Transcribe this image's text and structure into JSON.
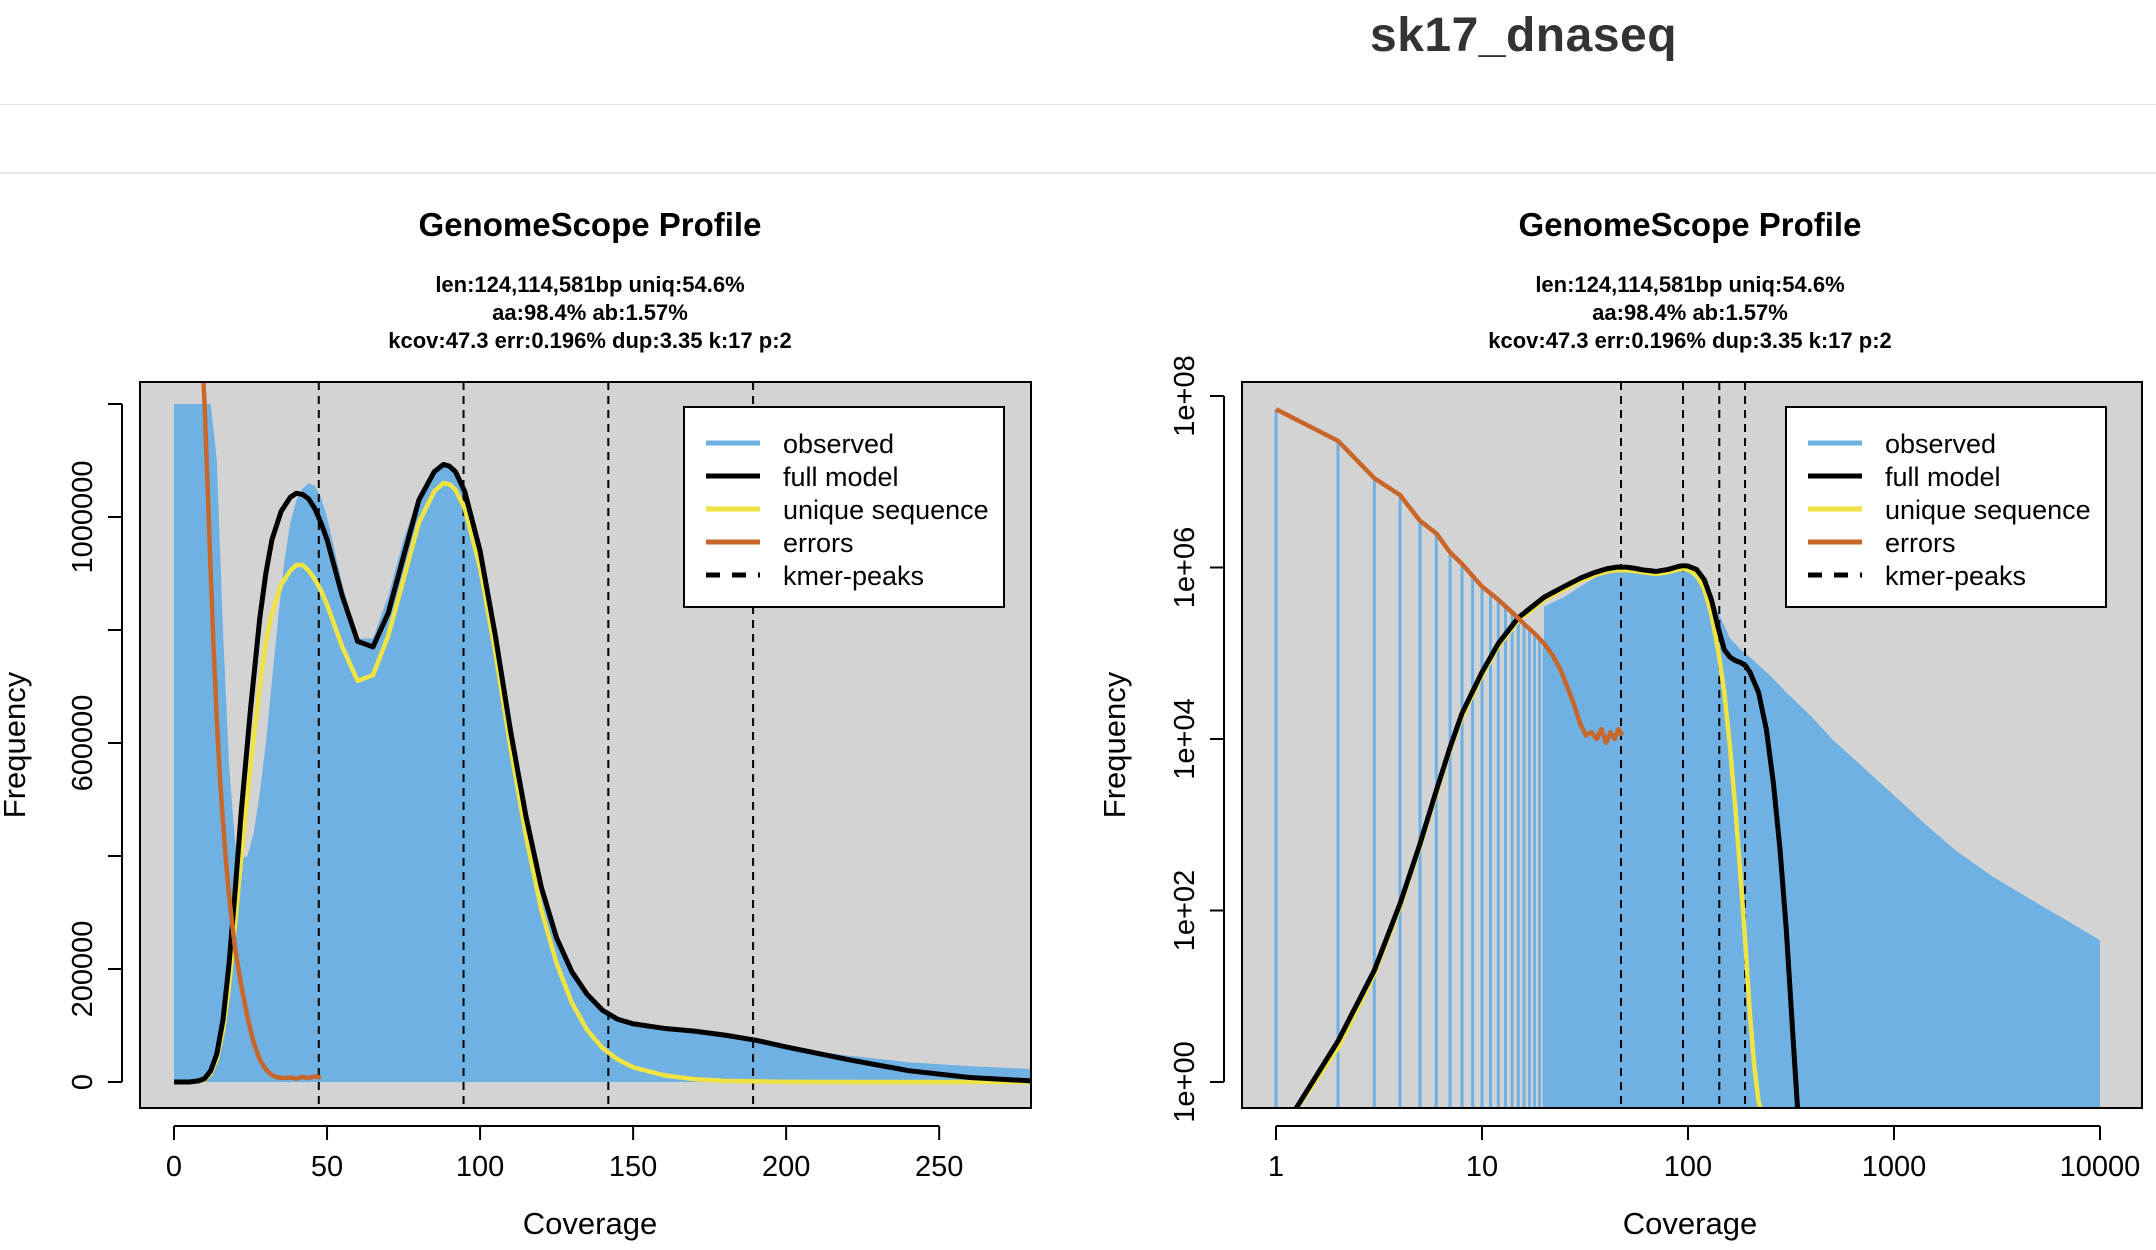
{
  "page": {
    "title": "sk17_dnaseq"
  },
  "colors": {
    "observed": "#6fb1e2",
    "full_model": "#000000",
    "unique_sequence": "#f0e442",
    "errors": "#c9662a",
    "panel_bg": "#d3d3d3"
  },
  "stats": {
    "line1": "len:124,114,581bp uniq:54.6%",
    "line2": "aa:98.4% ab:1.57%",
    "line3": "kcov:47.3 err:0.196%  dup:3.35  k:17 p:2"
  },
  "legend": [
    "observed",
    "full model",
    "unique sequence",
    "errors",
    "kmer-peaks"
  ],
  "chart_data": [
    {
      "type": "area",
      "title": "GenomeScope Profile",
      "xlabel": "Coverage",
      "ylabel": "Frequency",
      "xlim": [
        0,
        280
      ],
      "ylim": [
        0,
        1200000
      ],
      "x_ticks": [
        "0",
        "50",
        "100",
        "150",
        "200",
        "250"
      ],
      "y_ticks": [
        "0",
        "200000",
        "600000",
        "1000000"
      ],
      "kmer_peaks": [
        47.3,
        94.6,
        141.9,
        189.2
      ],
      "legend_position": "top-right",
      "series": [
        {
          "name": "observed",
          "x": [
            0,
            1,
            2,
            5,
            8,
            10,
            12,
            14,
            16,
            18,
            20,
            22,
            24,
            26,
            28,
            30,
            32,
            34,
            36,
            38,
            40,
            42,
            44,
            46,
            48,
            50,
            55,
            60,
            65,
            70,
            75,
            80,
            85,
            88,
            90,
            92,
            95,
            100,
            105,
            110,
            115,
            120,
            125,
            130,
            135,
            140,
            145,
            150,
            160,
            170,
            180,
            190,
            200,
            220,
            240,
            260,
            280
          ],
          "y": [
            1200000,
            1200000,
            1200000,
            1200000,
            1200000,
            1200000,
            1200000,
            1100000,
            800000,
            560000,
            420000,
            395000,
            400000,
            440000,
            510000,
            600000,
            710000,
            820000,
            920000,
            990000,
            1030000,
            1050000,
            1060000,
            1055000,
            1035000,
            1000000,
            880000,
            785000,
            785000,
            860000,
            960000,
            1040000,
            1080000,
            1090000,
            1088000,
            1075000,
            1040000,
            930000,
            780000,
            610000,
            460000,
            340000,
            250000,
            190000,
            150000,
            125000,
            110000,
            102000,
            93000,
            87000,
            80000,
            72000,
            62000,
            47000,
            35000,
            28000,
            23000
          ]
        },
        {
          "name": "full model",
          "x": [
            0,
            5,
            8,
            10,
            12,
            14,
            16,
            18,
            20,
            22,
            25,
            28,
            30,
            32,
            35,
            38,
            40,
            42,
            44,
            46,
            48,
            50,
            55,
            60,
            65,
            70,
            75,
            80,
            85,
            88,
            90,
            92,
            95,
            100,
            105,
            110,
            115,
            120,
            125,
            130,
            135,
            140,
            145,
            150,
            160,
            170,
            180,
            190,
            200,
            220,
            240,
            260,
            280
          ],
          "y": [
            0,
            0,
            2000,
            6000,
            20000,
            50000,
            110000,
            210000,
            340000,
            480000,
            660000,
            820000,
            900000,
            960000,
            1010000,
            1035000,
            1042000,
            1040000,
            1032000,
            1015000,
            990000,
            960000,
            860000,
            780000,
            770000,
            830000,
            930000,
            1030000,
            1080000,
            1093000,
            1090000,
            1080000,
            1045000,
            940000,
            790000,
            620000,
            470000,
            345000,
            255000,
            195000,
            155000,
            127000,
            111000,
            103000,
            95000,
            90000,
            83000,
            74000,
            62000,
            40000,
            20000,
            8000,
            2000
          ]
        },
        {
          "name": "unique sequence",
          "x": [
            0,
            5,
            8,
            10,
            12,
            14,
            16,
            18,
            20,
            22,
            25,
            28,
            30,
            32,
            35,
            38,
            40,
            42,
            44,
            46,
            48,
            50,
            55,
            60,
            65,
            70,
            75,
            80,
            85,
            88,
            90,
            92,
            95,
            100,
            105,
            110,
            115,
            120,
            125,
            130,
            135,
            140,
            145,
            150,
            160,
            170,
            180,
            200,
            240,
            280
          ],
          "y": [
            0,
            0,
            1000,
            4000,
            15000,
            40000,
            90000,
            170000,
            280000,
            400000,
            560000,
            700000,
            780000,
            830000,
            880000,
            905000,
            915000,
            915000,
            905000,
            890000,
            870000,
            845000,
            770000,
            710000,
            720000,
            790000,
            890000,
            990000,
            1045000,
            1060000,
            1058000,
            1048000,
            1015000,
            910000,
            760000,
            590000,
            435000,
            305000,
            210000,
            140000,
            92000,
            60000,
            40000,
            26000,
            12000,
            5000,
            2000,
            300,
            0,
            0
          ]
        },
        {
          "name": "errors",
          "x": [
            9,
            10,
            11,
            12,
            13,
            14,
            15,
            16,
            17,
            18,
            19,
            20,
            22,
            24,
            26,
            28,
            30,
            32,
            34,
            36,
            38,
            40,
            42,
            44,
            46,
            48
          ],
          "y": [
            1300000,
            1200000,
            1050000,
            900000,
            760000,
            640000,
            540000,
            460000,
            390000,
            330000,
            280000,
            235000,
            170000,
            115000,
            70000,
            40000,
            22000,
            12000,
            8000,
            7000,
            8000,
            6000,
            9000,
            7000,
            10000,
            8000
          ]
        }
      ]
    },
    {
      "type": "area",
      "title": "GenomeScope Profile",
      "xlabel": "Coverage",
      "ylabel": "Frequency",
      "x_scale": "log",
      "y_scale": "log",
      "xlim": [
        0.8,
        12000
      ],
      "ylim": [
        0.3,
        200000000
      ],
      "x_ticks": [
        "1",
        "10",
        "100",
        "1000",
        "10000"
      ],
      "y_ticks": [
        "1e+00",
        "1e+02",
        "1e+04",
        "1e+06",
        "1e+08"
      ],
      "kmer_peaks": [
        47.3,
        94.6,
        141.9,
        189.2
      ],
      "legend_position": "top-right",
      "series": [
        {
          "name": "observed",
          "x": [
            20,
            25,
            30,
            35,
            40,
            45,
            50,
            55,
            60,
            70,
            80,
            90,
            100,
            120,
            140,
            160,
            180,
            200,
            250,
            300,
            400,
            500,
            700,
            1000,
            1500,
            2000,
            3000,
            5000,
            7000,
            10000
          ],
          "y": [
            350000,
            450000,
            600000,
            750000,
            880000,
            950000,
            960000,
            940000,
            900000,
            860000,
            900000,
            950000,
            900000,
            600000,
            300000,
            150000,
            110000,
            90000,
            55000,
            35000,
            18000,
            10000,
            4800,
            2200,
            900,
            500,
            250,
            120,
            75,
            45
          ]
        },
        {
          "name": "full model",
          "x": [
            1.1,
            2,
            3,
            4,
            5,
            6,
            7,
            8,
            10,
            12,
            15,
            20,
            25,
            30,
            35,
            40,
            45,
            50,
            55,
            60,
            70,
            80,
            90,
            95,
            100,
            110,
            120,
            130,
            140,
            150,
            160,
            170,
            180,
            190,
            200,
            220,
            240,
            260,
            280,
            300,
            320,
            340,
            360
          ],
          "y": [
            0.3,
            3,
            20,
            120,
            600,
            2500,
            8000,
            20000,
            60000,
            130000,
            260000,
            450000,
            600000,
            750000,
            870000,
            960000,
            1010000,
            1010000,
            980000,
            940000,
            900000,
            950000,
            1030000,
            1050000,
            1040000,
            950000,
            720000,
            420000,
            200000,
            110000,
            90000,
            82000,
            78000,
            72000,
            60000,
            35000,
            13000,
            3000,
            500,
            60,
            5,
            0.5,
            0.3
          ]
        },
        {
          "name": "unique sequence",
          "x": [
            1.1,
            2,
            3,
            4,
            5,
            6,
            7,
            8,
            10,
            12,
            15,
            20,
            25,
            30,
            35,
            40,
            45,
            50,
            55,
            60,
            70,
            80,
            90,
            95,
            100,
            110,
            120,
            130,
            140,
            150,
            160,
            170,
            180,
            190,
            200,
            210,
            220,
            230,
            240
          ],
          "y": [
            0.3,
            2.5,
            18,
            110,
            560,
            2300,
            7500,
            18000,
            55000,
            120000,
            240000,
            420000,
            560000,
            700000,
            810000,
            890000,
            930000,
            930000,
            910000,
            880000,
            840000,
            880000,
            950000,
            960000,
            940000,
            820000,
            560000,
            280000,
            110000,
            35000,
            8000,
            1500,
            250,
            40,
            6,
            1.5,
            0.6,
            0.4,
            0.3
          ]
        },
        {
          "name": "errors",
          "x": [
            1,
            2,
            3,
            4,
            5,
            6,
            7,
            8,
            9,
            10,
            12,
            14,
            16,
            18,
            20,
            22,
            24,
            26,
            28,
            30,
            32,
            34,
            36,
            38,
            40,
            42,
            44,
            46,
            48
          ],
          "y": [
            70000000,
            30000000,
            11000000,
            7000000,
            3500000,
            2500000,
            1500000,
            1100000,
            800000,
            600000,
            420000,
            300000,
            220000,
            170000,
            130000,
            95000,
            65000,
            40000,
            25000,
            15000,
            11000,
            12000,
            10000,
            13000,
            9000,
            12000,
            10000,
            13000,
            11000
          ]
        }
      ]
    }
  ]
}
